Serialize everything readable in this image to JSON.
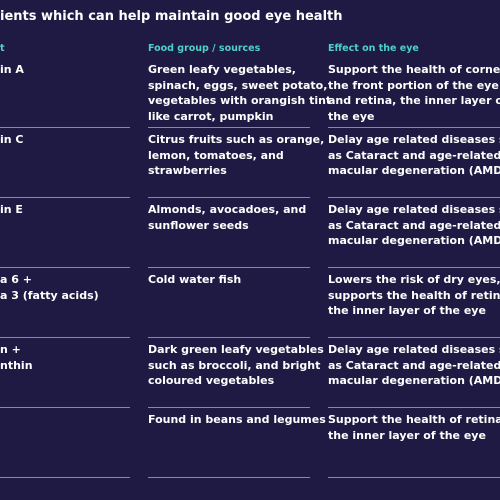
{
  "title": "ients which can help maintain good eye health",
  "table": {
    "headers": [
      "t",
      "Food group / sources",
      "Effect on the eye"
    ],
    "rows": [
      [
        [
          "in A"
        ],
        [
          "Green leafy vegetables,",
          "spinach, eggs, sweet potato,",
          "vegetables with orangish tint",
          "like carrot, pumpkin"
        ],
        [
          "Support the health of cornea,",
          "the front portion of the eye",
          "and retina, the inner layer of",
          "the eye"
        ]
      ],
      [
        [
          "in C"
        ],
        [
          "Citrus fruits such as orange,",
          "lemon, tomatoes, and",
          "strawberries"
        ],
        [
          "Delay age related diseases such",
          "as Cataract and age-related",
          "macular degeneration (AMD)"
        ]
      ],
      [
        [
          "in E"
        ],
        [
          "Almonds, avocadoes, and",
          "sunflower seeds"
        ],
        [
          "Delay age related diseases such",
          "as Cataract and age-related",
          "macular degeneration (AMD)"
        ]
      ],
      [
        [
          "a 6 +",
          "a 3 (fatty acids)"
        ],
        [
          "Cold water fish"
        ],
        [
          "Lowers the risk of dry eyes,",
          "supports the health of retina,",
          "the inner layer of the eye"
        ]
      ],
      [
        [
          "n +",
          "nthin"
        ],
        [
          "Dark green leafy vegetables",
          "such as broccoli, and bright",
          "coloured vegetables"
        ],
        [
          "Delay age related diseases such",
          "as Cataract and age-related",
          "macular degeneration (AMD)"
        ]
      ],
      [
        [],
        [
          "Found in beans and legumes"
        ],
        [
          "Support the health of retina,",
          "the inner layer of the eye"
        ]
      ]
    ]
  }
}
